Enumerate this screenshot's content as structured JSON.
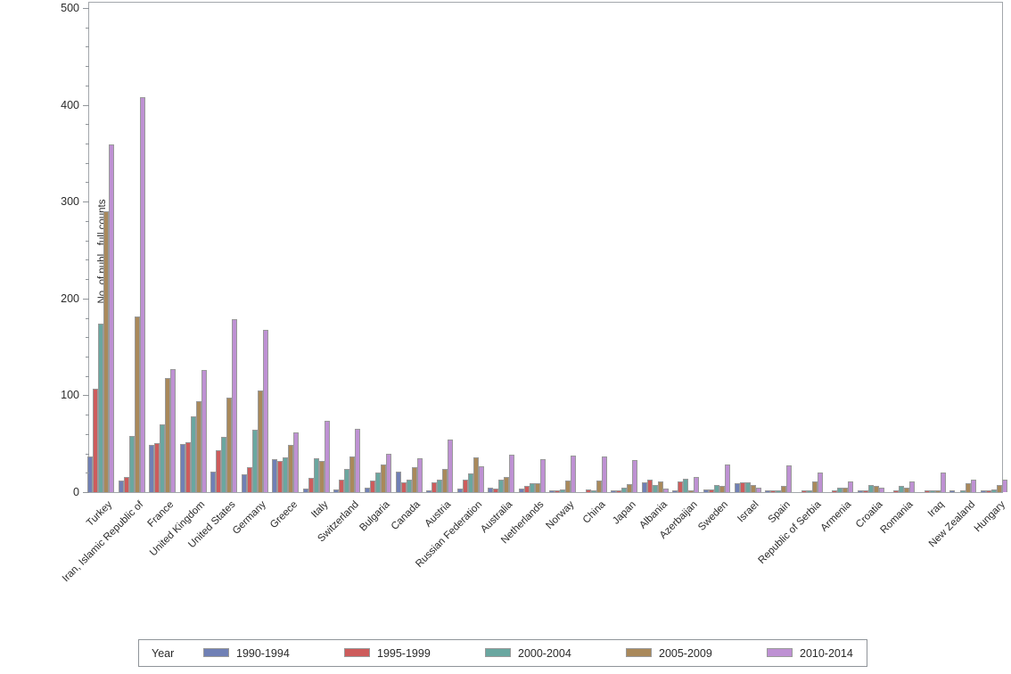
{
  "chart_data": {
    "type": "bar",
    "title": "",
    "xlabel": "",
    "ylabel": "No. of publ., full counts",
    "ylim": [
      0,
      500
    ],
    "y_major_ticks": [
      0,
      100,
      200,
      300,
      400,
      500
    ],
    "y_minor_tick_step": 20,
    "grid": false,
    "legend_title": "Year",
    "legend_position": "bottom",
    "categories": [
      "Turkey",
      "Iran, Islamic Republic of",
      "France",
      "United Kingdom",
      "United States",
      "Germany",
      "Greece",
      "Italy",
      "Switzerland",
      "Bulgaria",
      "Canada",
      "Austria",
      "Russian Federation",
      "Australia",
      "Netherlands",
      "Norway",
      "China",
      "Japan",
      "Albania",
      "Azerbaijan",
      "Sweden",
      "Israel",
      "Spain",
      "Republic of Serbia",
      "Armenia",
      "Croatia",
      "Romania",
      "Iraq",
      "New Zealand",
      "Hungary"
    ],
    "series": [
      {
        "name": "1990-1994",
        "color": "#7080b5",
        "values": [
          37,
          12,
          49,
          50,
          21,
          18,
          34,
          4,
          3,
          5,
          21,
          1,
          4,
          5,
          4,
          1,
          0,
          2,
          10,
          2,
          3,
          9,
          1,
          0,
          0,
          1,
          0,
          0,
          1,
          2
        ]
      },
      {
        "name": "1995-1999",
        "color": "#cd5c5c",
        "values": [
          107,
          16,
          51,
          52,
          43,
          26,
          32,
          15,
          13,
          12,
          10,
          10,
          13,
          4,
          6,
          2,
          3,
          2,
          13,
          11,
          3,
          10,
          1,
          1,
          1,
          2,
          2,
          1,
          0,
          2
        ]
      },
      {
        "name": "2000-2004",
        "color": "#6aa7a0",
        "values": [
          174,
          58,
          70,
          78,
          57,
          64,
          36,
          35,
          24,
          20,
          13,
          13,
          19,
          13,
          9,
          3,
          2,
          5,
          7,
          14,
          7,
          10,
          2,
          1,
          5,
          7,
          6,
          1,
          1,
          3
        ]
      },
      {
        "name": "2005-2009",
        "color": "#a9895b",
        "values": [
          290,
          181,
          118,
          94,
          98,
          105,
          49,
          32,
          37,
          29,
          26,
          24,
          36,
          16,
          9,
          12,
          12,
          8,
          11,
          2,
          6,
          7,
          6,
          11,
          5,
          6,
          5,
          2,
          9,
          7
        ]
      },
      {
        "name": "2010-2014",
        "color": "#be91d3",
        "values": [
          359,
          408,
          127,
          126,
          179,
          168,
          62,
          74,
          65,
          40,
          35,
          54,
          27,
          39,
          34,
          38,
          37,
          33,
          4,
          16,
          29,
          5,
          28,
          20,
          11,
          5,
          11,
          20,
          13,
          13
        ]
      }
    ]
  }
}
